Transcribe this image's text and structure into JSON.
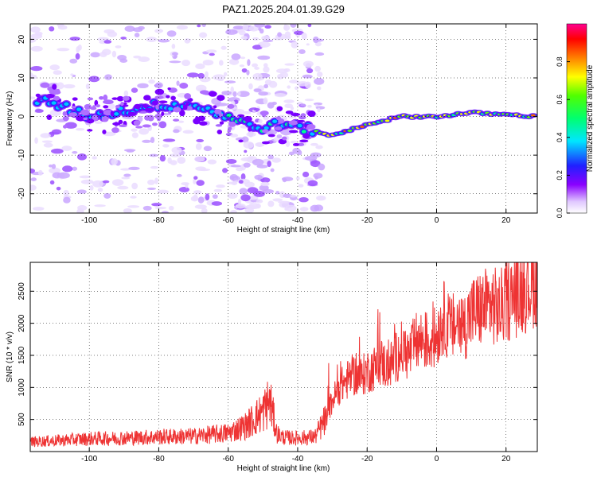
{
  "figure": {
    "title": "PAZ1.2025.204.01.39.G29"
  },
  "chart_data": [
    {
      "type": "heatmap",
      "xlabel": "Height of straight line (km)",
      "ylabel": "Frequency (Hz)",
      "xlim": [
        -117,
        29
      ],
      "ylim": [
        -25,
        24
      ],
      "xticks": [
        -100,
        -80,
        -60,
        -40,
        -20,
        0,
        20
      ],
      "yticks": [
        -20,
        -10,
        0,
        10,
        20
      ],
      "grid": true,
      "colorbar": {
        "label": "Normalized spectral amplitude",
        "range": [
          0,
          1
        ],
        "ticks": [
          0.0,
          0.2,
          0.4,
          0.6,
          0.8
        ],
        "colors": [
          "#ffffff",
          "#e8d0ff",
          "#b070ff",
          "#7a00ff",
          "#2020ff",
          "#00e0ff",
          "#00ff80",
          "#40ff00",
          "#ffff00",
          "#ff8000",
          "#ff0000",
          "#ff0090"
        ]
      },
      "ridge": {
        "description_points": [
          {
            "x": -112,
            "y": 4
          },
          {
            "x": -100,
            "y": 0
          },
          {
            "x": -80,
            "y": 3
          },
          {
            "x": -70,
            "y": 3
          },
          {
            "x": -60,
            "y": 0
          },
          {
            "x": -52,
            "y": -3
          },
          {
            "x": -45,
            "y": -2
          },
          {
            "x": -38,
            "y": -3
          },
          {
            "x": -30,
            "y": -5
          },
          {
            "x": -20,
            "y": -2
          },
          {
            "x": -10,
            "y": 0
          },
          {
            "x": 0,
            "y": 0
          },
          {
            "x": 10,
            "y": 1
          },
          {
            "x": 29,
            "y": 0
          }
        ]
      }
    },
    {
      "type": "line",
      "xlabel": "Height of straight line (km)",
      "ylabel": "SNR (10 * v/v)",
      "xlim": [
        -117,
        29
      ],
      "ylim": [
        0,
        2950
      ],
      "xticks": [
        -100,
        -80,
        -60,
        -40,
        -20,
        0,
        20
      ],
      "yticks": [
        500,
        1000,
        1500,
        2000,
        2500
      ],
      "grid": true,
      "color": "#ee3333",
      "series": [
        {
          "x": [
            -117,
            -110,
            -100,
            -90,
            -80,
            -70,
            -60,
            -55,
            -50,
            -48,
            -46,
            -44,
            -40,
            -35,
            -32,
            -30,
            -28,
            -26,
            -24,
            -22,
            -20,
            -18,
            -16,
            -14,
            -12,
            -10,
            -8,
            -6,
            -4,
            -2,
            0,
            2,
            4,
            6,
            8,
            10,
            12,
            14,
            16,
            18,
            20,
            22,
            24,
            26,
            28,
            29
          ],
          "y": [
            150,
            170,
            200,
            210,
            230,
            240,
            290,
            400,
            620,
            800,
            280,
            220,
            210,
            230,
            500,
            800,
            1000,
            1100,
            1200,
            1150,
            1250,
            1300,
            1400,
            1300,
            1450,
            1600,
            1500,
            1700,
            1750,
            1700,
            1800,
            2100,
            1900,
            2000,
            1950,
            2150,
            2200,
            2250,
            2300,
            2200,
            2350,
            2400,
            2500,
            2550,
            2650,
            2700
          ]
        }
      ]
    }
  ]
}
